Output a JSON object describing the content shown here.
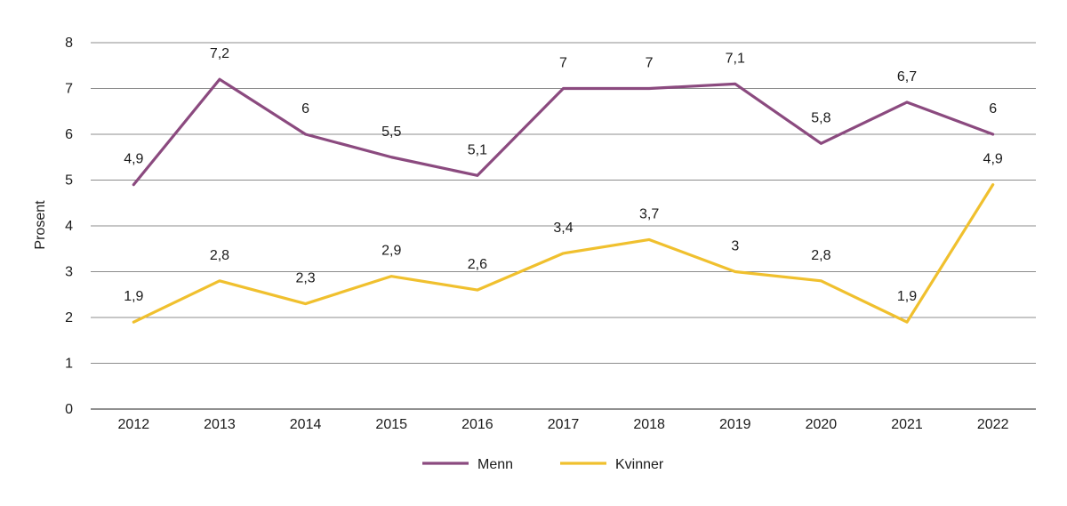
{
  "chart_data": {
    "type": "line",
    "title": "",
    "xlabel": "",
    "ylabel": "Prosent",
    "ylim": [
      0,
      8
    ],
    "yticks": [
      "0",
      "1",
      "2",
      "3",
      "4",
      "5",
      "6",
      "7",
      "8"
    ],
    "categories": [
      "2012",
      "2013",
      "2014",
      "2015",
      "2016",
      "2017",
      "2018",
      "2019",
      "2020",
      "2021",
      "2022"
    ],
    "series": [
      {
        "name": "Menn",
        "color": "#8b4a7f",
        "values": [
          4.9,
          7.2,
          6,
          5.5,
          5.1,
          7,
          7,
          7.1,
          5.8,
          6.7,
          6
        ],
        "labels": [
          "4,9",
          "7,2",
          "6",
          "5,5",
          "5,1",
          "7",
          "7",
          "7,1",
          "5,8",
          "6,7",
          "6"
        ]
      },
      {
        "name": "Kvinner",
        "color": "#f0c02e",
        "values": [
          1.9,
          2.8,
          2.3,
          2.9,
          2.6,
          3.4,
          3.7,
          3,
          2.8,
          1.9,
          4.9
        ],
        "labels": [
          "1,9",
          "2,8",
          "2,3",
          "2,9",
          "2,6",
          "3,4",
          "3,7",
          "3",
          "2,8",
          "1,9",
          "4,9"
        ]
      }
    ],
    "grid": true,
    "legend": "bottom-center"
  }
}
